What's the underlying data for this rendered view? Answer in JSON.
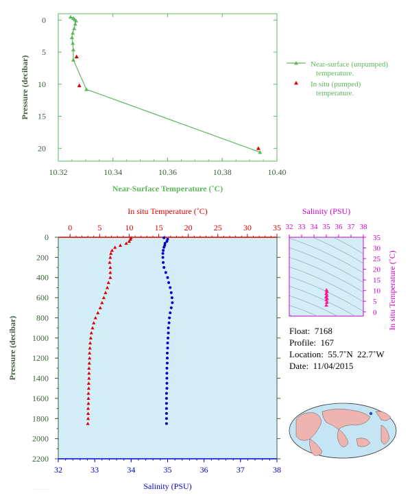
{
  "colors": {
    "green": "#5cb85c",
    "dark_green": "#3b5e3b",
    "red": "#dd0000",
    "blue": "#0000cc",
    "magenta": "#cc00cc",
    "pink": "#ff1493",
    "panel_bg": "#d4eef9",
    "map_ocean": "#c5e4f4",
    "map_land": "#f0b4b0"
  },
  "chart_data": [
    {
      "type": "line",
      "xlabel": "Near-Surface Temperature (˚C)",
      "ylabel": "Pressure (decibar)",
      "xlim": [
        10.32,
        10.4
      ],
      "ylim": [
        22,
        -1
      ],
      "x_ticks": [
        "10.32",
        "10.34",
        "10.36",
        "10.38",
        "10.40"
      ],
      "y_ticks": [
        "0",
        "5",
        "10",
        "15",
        "20"
      ],
      "legend_position": "right",
      "series": [
        {
          "name": "Near-surface (unpumped) temperature.",
          "marker": "triangle-line",
          "x": [
            10.3245,
            10.3255,
            10.326,
            10.3265,
            10.3262,
            10.3258,
            10.3253,
            10.325,
            10.3253,
            10.3255,
            10.3255,
            10.3303,
            10.3938
          ],
          "y": [
            -0.5,
            -0.3,
            -0.1,
            0.1,
            0.6,
            1.3,
            2.0,
            2.7,
            3.6,
            4.6,
            6.2,
            10.8,
            20.6
          ]
        },
        {
          "name": "In situ (pumped) temperature.",
          "marker": "triangle",
          "x": [
            10.3267,
            10.3277,
            10.3932
          ],
          "y": [
            5.7,
            10.2,
            20.0
          ]
        }
      ]
    },
    {
      "type": "scatter",
      "title": "In situ Temperature (˚C)",
      "xlabel": "Salinity (PSU)",
      "ylabel": "Pressure (decibar)",
      "temp_range": [
        -2,
        35
      ],
      "sal_range": [
        32,
        38
      ],
      "ylim": [
        2200,
        0
      ],
      "temp_ticks": [
        "0",
        "5",
        "10",
        "15",
        "20",
        "25",
        "30",
        "35"
      ],
      "sal_ticks": [
        "32",
        "33",
        "34",
        "35",
        "36",
        "37",
        "38"
      ],
      "pressure_ticks": [
        "0",
        "200",
        "400",
        "600",
        "800",
        "1000",
        "1200",
        "1400",
        "1600",
        "1800",
        "2000",
        "2200"
      ],
      "series": [
        {
          "name": "In situ Temperature (˚C)",
          "pressure": [
            5,
            20,
            40,
            60,
            80,
            100,
            130,
            160,
            200,
            250,
            300,
            350,
            400,
            450,
            500,
            550,
            600,
            650,
            700,
            750,
            800,
            850,
            900,
            950,
            1000,
            1050,
            1100,
            1150,
            1200,
            1250,
            1300,
            1350,
            1400,
            1450,
            1500,
            1550,
            1600,
            1650,
            1700,
            1750,
            1800,
            1850
          ],
          "temperature": [
            10.3,
            10.2,
            10.0,
            9.5,
            8.5,
            7.6,
            7.1,
            6.9,
            6.8,
            6.7,
            6.8,
            6.8,
            6.8,
            6.5,
            6.3,
            6.0,
            5.7,
            5.4,
            5.1,
            4.7,
            4.3,
            4.0,
            3.8,
            3.6,
            3.5,
            3.4,
            3.35,
            3.3,
            3.3,
            3.25,
            3.2,
            3.2,
            3.2,
            3.15,
            3.15,
            3.1,
            3.1,
            3.1,
            3.05,
            3.05,
            3.05,
            3.0
          ]
        },
        {
          "name": "Salinity (PSU)",
          "pressure": [
            5,
            20,
            40,
            60,
            80,
            100,
            130,
            160,
            200,
            250,
            300,
            350,
            400,
            450,
            500,
            550,
            600,
            650,
            700,
            750,
            800,
            850,
            900,
            950,
            1000,
            1050,
            1100,
            1150,
            1200,
            1250,
            1300,
            1350,
            1400,
            1450,
            1500,
            1550,
            1600,
            1650,
            1700,
            1750,
            1800,
            1850
          ],
          "salinity": [
            34.9,
            35.0,
            34.98,
            34.93,
            34.92,
            34.9,
            34.88,
            34.87,
            34.87,
            34.88,
            34.9,
            34.95,
            35.0,
            35.03,
            35.07,
            35.1,
            35.12,
            35.13,
            35.1,
            35.07,
            35.05,
            35.04,
            35.02,
            35.02,
            35.01,
            35.0,
            35.0,
            34.99,
            34.99,
            34.99,
            34.98,
            34.98,
            34.98,
            34.98,
            34.98,
            34.97,
            34.97,
            34.97,
            34.97,
            34.97,
            34.97,
            34.97
          ]
        }
      ]
    },
    {
      "type": "scatter",
      "title": "Salinity (PSU)",
      "ylabel": "In situ Temperature (˚C)",
      "xlim": [
        32,
        38
      ],
      "ylim": [
        -2,
        35
      ],
      "x_ticks": [
        "32",
        "33",
        "34",
        "35",
        "36",
        "37",
        "38"
      ],
      "y_ticks": [
        "0",
        "5",
        "10",
        "15",
        "20",
        "25",
        "30",
        "35"
      ],
      "series": [
        {
          "marker": "triangle",
          "x": [
            35.02,
            35.05,
            35.0,
            35.04,
            34.98,
            35.06,
            35.01,
            35.04,
            35.0
          ],
          "y": [
            10.3,
            9.6,
            8.7,
            7.8,
            7.0,
            6.4,
            5.7,
            4.5,
            3.2
          ]
        }
      ]
    }
  ],
  "info": {
    "float": "Float:  7168",
    "profile": "Profile:  167",
    "location": "Location:  55.7˚N  22.7˚W",
    "date": "Date:  11/04/2015"
  }
}
